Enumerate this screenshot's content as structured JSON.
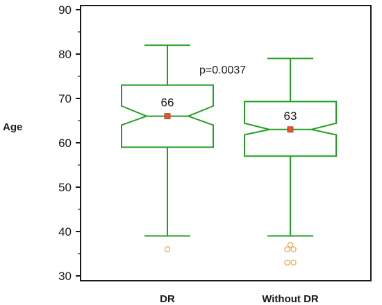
{
  "colors": {
    "box": "#22a022",
    "median_marker": "#e8552a",
    "outlier": "#f0a040",
    "axis": "#1a1a1a"
  },
  "chart_data": {
    "type": "boxplot",
    "notched": true,
    "ylabel": "Age",
    "ylim": [
      30,
      90
    ],
    "yticks": [
      30,
      40,
      50,
      60,
      70,
      80,
      90
    ],
    "categories": [
      "DR",
      "Without DR"
    ],
    "groups": [
      {
        "category": "DR",
        "whisker_low": 39,
        "q1": 59,
        "median": 66,
        "q3": 73,
        "whisker_high": 82,
        "notch_low": 64,
        "notch_high": 68.3,
        "outliers": [
          36
        ],
        "median_label": "66"
      },
      {
        "category": "Without DR",
        "whisker_low": 39,
        "q1": 57,
        "median": 63,
        "q3": 69.3,
        "whisker_high": 79,
        "notch_low": 61.8,
        "notch_high": 64.4,
        "outliers": [
          37,
          36,
          36,
          33,
          33
        ],
        "median_label": "63"
      }
    ],
    "annotation": "p=0.0037",
    "grid": false
  }
}
